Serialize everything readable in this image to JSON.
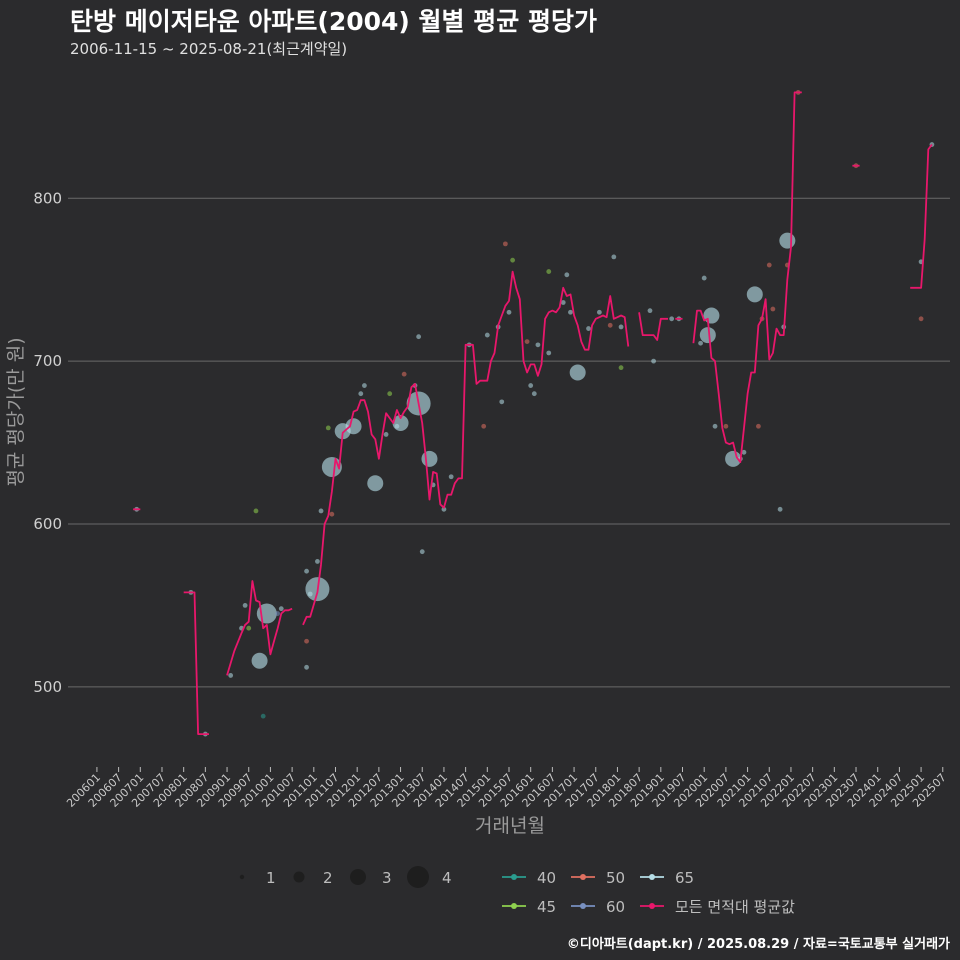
{
  "title": "탄방 메이저타운 아파트(2004) 월별 평균 평당가",
  "subtitle": "2006-11-15 ~ 2025-08-21(최근계약일)",
  "credit": "©디아파트(dapt.kr) / 2025.08.29 / 자료=국토교통부 실거래가",
  "chart_data": {
    "type": "line",
    "xlabel": "거래년월",
    "ylabel": "평균 평당가(만 원)",
    "x_start": "2006-01",
    "x_end": "2025-07",
    "x_ticks": [
      "200601",
      "200607",
      "200701",
      "200707",
      "200801",
      "200807",
      "200901",
      "200907",
      "201001",
      "201007",
      "201101",
      "201107",
      "201201",
      "201207",
      "201301",
      "201307",
      "201401",
      "201407",
      "201501",
      "201507",
      "201601",
      "201607",
      "201701",
      "201707",
      "201801",
      "201807",
      "201901",
      "201907",
      "202001",
      "202007",
      "202101",
      "202107",
      "202201",
      "202207",
      "202301",
      "202307",
      "202401",
      "202407",
      "202501",
      "202507"
    ],
    "y_ticks": [
      500,
      600,
      700,
      800
    ],
    "ylim": [
      452,
      880
    ],
    "grid": true,
    "legend_position": "bottom",
    "size_legend": [
      1,
      2,
      3,
      4
    ],
    "area_legend": [
      {
        "name": "40",
        "color": "#2a9d8f"
      },
      {
        "name": "50",
        "color": "#e07060"
      },
      {
        "name": "65",
        "color": "#b5dde6"
      },
      {
        "name": "45",
        "color": "#8fd14f"
      },
      {
        "name": "60",
        "color": "#7890c0"
      },
      {
        "name": "모든 면적대 평균값",
        "color": "#e8176b"
      }
    ],
    "avg_line_color": "#e8176b",
    "avg_line_segments": [
      [
        [
          "2006-11",
          609
        ],
        [
          "2007-01",
          609
        ]
      ],
      [
        [
          "2008-01",
          558
        ],
        [
          "2008-04",
          558
        ],
        [
          "2008-05",
          471
        ],
        [
          "2008-08",
          471
        ]
      ],
      [
        [
          "2009-01",
          507
        ],
        [
          "2009-03",
          522
        ],
        [
          "2009-05",
          533
        ],
        [
          "2009-06",
          538
        ],
        [
          "2009-07",
          540
        ],
        [
          "2009-08",
          565
        ],
        [
          "2009-09",
          553
        ],
        [
          "2009-10",
          552
        ],
        [
          "2009-11",
          536
        ],
        [
          "2009-12",
          538
        ],
        [
          "2010-01",
          520
        ],
        [
          "2010-02",
          528
        ],
        [
          "2010-03",
          536
        ],
        [
          "2010-04",
          545
        ],
        [
          "2010-05",
          547
        ],
        [
          "2010-06",
          547
        ],
        [
          "2010-07",
          548
        ]
      ],
      [
        [
          "2010-10",
          538
        ],
        [
          "2010-11",
          543
        ],
        [
          "2010-12",
          543
        ],
        [
          "2011-02",
          558
        ],
        [
          "2011-03",
          575
        ],
        [
          "2011-04",
          600
        ],
        [
          "2011-05",
          605
        ],
        [
          "2011-06",
          620
        ],
        [
          "2011-07",
          640
        ],
        [
          "2011-08",
          634
        ],
        [
          "2011-09",
          656
        ],
        [
          "2011-10",
          658
        ],
        [
          "2011-11",
          660
        ],
        [
          "2011-12",
          669
        ],
        [
          "2012-01",
          670
        ],
        [
          "2012-02",
          676
        ],
        [
          "2012-03",
          676
        ],
        [
          "2012-04",
          669
        ],
        [
          "2012-05",
          655
        ],
        [
          "2012-06",
          652
        ],
        [
          "2012-07",
          640
        ],
        [
          "2012-08",
          655
        ],
        [
          "2012-09",
          668
        ],
        [
          "2012-10",
          665
        ],
        [
          "2012-11",
          662
        ],
        [
          "2012-12",
          670
        ],
        [
          "2013-01",
          665
        ],
        [
          "2013-02",
          669
        ],
        [
          "2013-03",
          672
        ],
        [
          "2013-04",
          684
        ],
        [
          "2013-05",
          686
        ],
        [
          "2013-06",
          674
        ],
        [
          "2013-07",
          662
        ],
        [
          "2013-08",
          640
        ],
        [
          "2013-09",
          615
        ],
        [
          "2013-10",
          632
        ],
        [
          "2013-11",
          631
        ],
        [
          "2013-12",
          612
        ],
        [
          "2014-01",
          610
        ],
        [
          "2014-02",
          618
        ],
        [
          "2014-03",
          618
        ],
        [
          "2014-04",
          625
        ],
        [
          "2014-05",
          628
        ],
        [
          "2014-06",
          628
        ],
        [
          "2014-07",
          710
        ],
        [
          "2014-08",
          710
        ],
        [
          "2014-09",
          710
        ],
        [
          "2014-10",
          686
        ],
        [
          "2014-11",
          688
        ],
        [
          "2014-12",
          688
        ],
        [
          "2015-01",
          688
        ],
        [
          "2015-02",
          700
        ],
        [
          "2015-03",
          705
        ],
        [
          "2015-04",
          722
        ],
        [
          "2015-05",
          728
        ],
        [
          "2015-06",
          734
        ],
        [
          "2015-07",
          737
        ],
        [
          "2015-08",
          755
        ],
        [
          "2015-09",
          745
        ],
        [
          "2015-10",
          738
        ],
        [
          "2015-11",
          700
        ],
        [
          "2015-12",
          693
        ],
        [
          "2016-01",
          698
        ],
        [
          "2016-02",
          698
        ],
        [
          "2016-03",
          691
        ],
        [
          "2016-04",
          698
        ],
        [
          "2016-05",
          726
        ],
        [
          "2016-06",
          730
        ],
        [
          "2016-07",
          731
        ],
        [
          "2016-08",
          730
        ],
        [
          "2016-09",
          733
        ],
        [
          "2016-10",
          745
        ],
        [
          "2016-11",
          740
        ],
        [
          "2016-12",
          741
        ],
        [
          "2017-01",
          728
        ],
        [
          "2017-02",
          722
        ],
        [
          "2017-03",
          712
        ],
        [
          "2017-04",
          707
        ],
        [
          "2017-05",
          707
        ],
        [
          "2017-06",
          722
        ],
        [
          "2017-07",
          726
        ],
        [
          "2017-08",
          727
        ],
        [
          "2017-09",
          728
        ],
        [
          "2017-10",
          727
        ],
        [
          "2017-11",
          740
        ],
        [
          "2017-12",
          726
        ],
        [
          "2018-01",
          727
        ],
        [
          "2018-02",
          728
        ],
        [
          "2018-03",
          727
        ],
        [
          "2018-04",
          709
        ]
      ],
      [
        [
          "2018-07",
          730
        ],
        [
          "2018-08",
          716
        ],
        [
          "2018-09",
          716
        ],
        [
          "2018-10",
          716
        ],
        [
          "2018-11",
          716
        ],
        [
          "2018-12",
          713
        ],
        [
          "2019-01",
          726
        ],
        [
          "2019-02",
          726
        ],
        [
          "2019-03",
          726
        ]
      ],
      [
        [
          "2019-05",
          726
        ],
        [
          "2019-06",
          726
        ],
        [
          "2019-07",
          726
        ]
      ],
      [
        [
          "2019-10",
          711
        ],
        [
          "2019-11",
          731
        ],
        [
          "2019-12",
          731
        ],
        [
          "2020-01",
          725
        ],
        [
          "2020-02",
          726
        ],
        [
          "2020-03",
          702
        ],
        [
          "2020-04",
          700
        ],
        [
          "2020-05",
          680
        ],
        [
          "2020-06",
          659
        ],
        [
          "2020-07",
          650
        ],
        [
          "2020-08",
          649
        ],
        [
          "2020-09",
          650
        ],
        [
          "2020-10",
          641
        ],
        [
          "2020-11",
          638
        ],
        [
          "2020-12",
          659
        ],
        [
          "2021-01",
          680
        ],
        [
          "2021-02",
          693
        ],
        [
          "2021-03",
          693
        ],
        [
          "2021-04",
          722
        ],
        [
          "2021-05",
          726
        ],
        [
          "2021-06",
          738
        ],
        [
          "2021-07",
          701
        ],
        [
          "2021-08",
          705
        ],
        [
          "2021-09",
          720
        ],
        [
          "2021-10",
          716
        ],
        [
          "2021-11",
          716
        ],
        [
          "2021-12",
          750
        ],
        [
          "2022-01",
          770
        ],
        [
          "2022-02",
          865
        ],
        [
          "2022-03",
          865
        ],
        [
          "2022-04",
          865
        ]
      ],
      [
        [
          "2023-06",
          820
        ],
        [
          "2023-08",
          820
        ]
      ],
      [
        [
          "2024-10",
          745
        ],
        [
          "2024-12",
          745
        ],
        [
          "2025-01",
          745
        ],
        [
          "2025-02",
          775
        ],
        [
          "2025-03",
          830
        ],
        [
          "2025-04",
          833
        ]
      ]
    ],
    "points": [
      {
        "x": "2006-12",
        "y": 609,
        "area": "65",
        "n": 1
      },
      {
        "x": "2008-03",
        "y": 558,
        "area": "65",
        "n": 1
      },
      {
        "x": "2008-07",
        "y": 471,
        "area": "65",
        "n": 1
      },
      {
        "x": "2009-02",
        "y": 507,
        "area": "65",
        "n": 1
      },
      {
        "x": "2009-05",
        "y": 536,
        "area": "65",
        "n": 1
      },
      {
        "x": "2009-06",
        "y": 550,
        "area": "65",
        "n": 1
      },
      {
        "x": "2009-07",
        "y": 536,
        "area": "45",
        "n": 1
      },
      {
        "x": "2009-09",
        "y": 608,
        "area": "45",
        "n": 1
      },
      {
        "x": "2009-10",
        "y": 516,
        "area": "65",
        "n": 2
      },
      {
        "x": "2009-11",
        "y": 482,
        "area": "40",
        "n": 1
      },
      {
        "x": "2009-12",
        "y": 545,
        "area": "65",
        "n": 3
      },
      {
        "x": "2010-03",
        "y": 545,
        "area": "60",
        "n": 1
      },
      {
        "x": "2010-04",
        "y": 548,
        "area": "65",
        "n": 1
      },
      {
        "x": "2010-11",
        "y": 512,
        "area": "65",
        "n": 1
      },
      {
        "x": "2010-11",
        "y": 528,
        "area": "50",
        "n": 1
      },
      {
        "x": "2010-11",
        "y": 571,
        "area": "65",
        "n": 1
      },
      {
        "x": "2010-12",
        "y": 557,
        "area": "65",
        "n": 1
      },
      {
        "x": "2011-02",
        "y": 577,
        "area": "65",
        "n": 1
      },
      {
        "x": "2011-03",
        "y": 608,
        "area": "65",
        "n": 1
      },
      {
        "x": "2011-02",
        "y": 560,
        "area": "65",
        "n": 4
      },
      {
        "x": "2011-05",
        "y": 659,
        "area": "45",
        "n": 1
      },
      {
        "x": "2011-06",
        "y": 606,
        "area": "50",
        "n": 1
      },
      {
        "x": "2011-06",
        "y": 635,
        "area": "65",
        "n": 3
      },
      {
        "x": "2011-09",
        "y": 657,
        "area": "65",
        "n": 2
      },
      {
        "x": "2011-12",
        "y": 660,
        "area": "65",
        "n": 2
      },
      {
        "x": "2012-02",
        "y": 680,
        "area": "65",
        "n": 1
      },
      {
        "x": "2012-03",
        "y": 685,
        "area": "65",
        "n": 1
      },
      {
        "x": "2012-06",
        "y": 625,
        "area": "65",
        "n": 2
      },
      {
        "x": "2012-09",
        "y": 655,
        "area": "65",
        "n": 1
      },
      {
        "x": "2012-10",
        "y": 680,
        "area": "45",
        "n": 1
      },
      {
        "x": "2012-12",
        "y": 660,
        "area": "65",
        "n": 1
      },
      {
        "x": "2013-01",
        "y": 662,
        "area": "65",
        "n": 2
      },
      {
        "x": "2013-02",
        "y": 692,
        "area": "50",
        "n": 1
      },
      {
        "x": "2013-05",
        "y": 685,
        "area": "65",
        "n": 1
      },
      {
        "x": "2013-06",
        "y": 715,
        "area": "65",
        "n": 1
      },
      {
        "x": "2013-06",
        "y": 674,
        "area": "65",
        "n": 4
      },
      {
        "x": "2013-07",
        "y": 583,
        "area": "65",
        "n": 1
      },
      {
        "x": "2013-09",
        "y": 640,
        "area": "65",
        "n": 2
      },
      {
        "x": "2013-10",
        "y": 624,
        "area": "65",
        "n": 1
      },
      {
        "x": "2014-01",
        "y": 609,
        "area": "65",
        "n": 1
      },
      {
        "x": "2014-03",
        "y": 629,
        "area": "65",
        "n": 1
      },
      {
        "x": "2014-08",
        "y": 710,
        "area": "65",
        "n": 1
      },
      {
        "x": "2014-12",
        "y": 660,
        "area": "50",
        "n": 1
      },
      {
        "x": "2015-01",
        "y": 716,
        "area": "65",
        "n": 1
      },
      {
        "x": "2015-04",
        "y": 721,
        "area": "65",
        "n": 1
      },
      {
        "x": "2015-05",
        "y": 675,
        "area": "65",
        "n": 1
      },
      {
        "x": "2015-06",
        "y": 772,
        "area": "50",
        "n": 1
      },
      {
        "x": "2015-07",
        "y": 730,
        "area": "65",
        "n": 1
      },
      {
        "x": "2015-08",
        "y": 762,
        "area": "45",
        "n": 1
      },
      {
        "x": "2015-12",
        "y": 712,
        "area": "50",
        "n": 1
      },
      {
        "x": "2016-01",
        "y": 685,
        "area": "65",
        "n": 1
      },
      {
        "x": "2016-02",
        "y": 680,
        "area": "65",
        "n": 1
      },
      {
        "x": "2016-03",
        "y": 710,
        "area": "65",
        "n": 1
      },
      {
        "x": "2016-06",
        "y": 755,
        "area": "45",
        "n": 1
      },
      {
        "x": "2016-06",
        "y": 705,
        "area": "65",
        "n": 1
      },
      {
        "x": "2016-10",
        "y": 736,
        "area": "65",
        "n": 1
      },
      {
        "x": "2016-11",
        "y": 753,
        "area": "65",
        "n": 1
      },
      {
        "x": "2016-12",
        "y": 730,
        "area": "65",
        "n": 1
      },
      {
        "x": "2017-02",
        "y": 693,
        "area": "65",
        "n": 2
      },
      {
        "x": "2017-05",
        "y": 720,
        "area": "65",
        "n": 1
      },
      {
        "x": "2017-08",
        "y": 730,
        "area": "65",
        "n": 1
      },
      {
        "x": "2017-11",
        "y": 722,
        "area": "50",
        "n": 1
      },
      {
        "x": "2017-12",
        "y": 764,
        "area": "65",
        "n": 1
      },
      {
        "x": "2018-02",
        "y": 721,
        "area": "65",
        "n": 1
      },
      {
        "x": "2018-02",
        "y": 696,
        "area": "45",
        "n": 1
      },
      {
        "x": "2018-10",
        "y": 731,
        "area": "65",
        "n": 1
      },
      {
        "x": "2018-11",
        "y": 700,
        "area": "65",
        "n": 1
      },
      {
        "x": "2019-04",
        "y": 726,
        "area": "65",
        "n": 1
      },
      {
        "x": "2019-06",
        "y": 726,
        "area": "65",
        "n": 1
      },
      {
        "x": "2019-12",
        "y": 711,
        "area": "65",
        "n": 1
      },
      {
        "x": "2020-01",
        "y": 751,
        "area": "65",
        "n": 1
      },
      {
        "x": "2020-02",
        "y": 716,
        "area": "65",
        "n": 2
      },
      {
        "x": "2020-03",
        "y": 728,
        "area": "65",
        "n": 2
      },
      {
        "x": "2020-04",
        "y": 660,
        "area": "65",
        "n": 1
      },
      {
        "x": "2020-07",
        "y": 660,
        "area": "50",
        "n": 1
      },
      {
        "x": "2020-09",
        "y": 640,
        "area": "65",
        "n": 2
      },
      {
        "x": "2020-11",
        "y": 640,
        "area": "65",
        "n": 1
      },
      {
        "x": "2020-12",
        "y": 644,
        "area": "65",
        "n": 1
      },
      {
        "x": "2021-03",
        "y": 741,
        "area": "65",
        "n": 2
      },
      {
        "x": "2021-04",
        "y": 660,
        "area": "50",
        "n": 1
      },
      {
        "x": "2021-05",
        "y": 726,
        "area": "50",
        "n": 1
      },
      {
        "x": "2021-07",
        "y": 759,
        "area": "50",
        "n": 1
      },
      {
        "x": "2021-08",
        "y": 732,
        "area": "50",
        "n": 1
      },
      {
        "x": "2021-10",
        "y": 609,
        "area": "65",
        "n": 1
      },
      {
        "x": "2021-11",
        "y": 721,
        "area": "65",
        "n": 1
      },
      {
        "x": "2021-12",
        "y": 759,
        "area": "50",
        "n": 1
      },
      {
        "x": "2021-12",
        "y": 774,
        "area": "65",
        "n": 2
      },
      {
        "x": "2022-03",
        "y": 865,
        "area": "50",
        "n": 1
      },
      {
        "x": "2023-07",
        "y": 820,
        "area": "50",
        "n": 1
      },
      {
        "x": "2025-01",
        "y": 761,
        "area": "65",
        "n": 1
      },
      {
        "x": "2025-01",
        "y": 726,
        "area": "50",
        "n": 1
      },
      {
        "x": "2025-04",
        "y": 833,
        "area": "65",
        "n": 1
      }
    ]
  }
}
